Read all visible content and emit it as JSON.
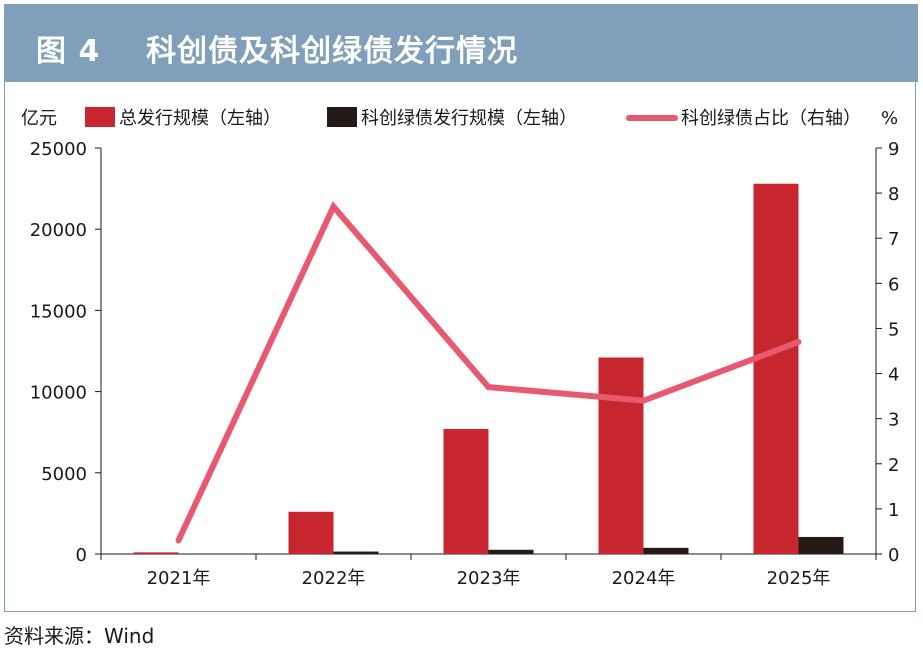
{
  "header": {
    "figure_label": "图 4",
    "title": "科创债及科创绿债发行情况"
  },
  "source": "资料来源：Wind",
  "colors": {
    "header_bg": "#7f9fba",
    "total_bar": "#c8262e",
    "green_bar": "#231a15",
    "ratio_line": "#e8596f"
  },
  "chart_data": {
    "type": "bar",
    "categories": [
      "2021年",
      "2022年",
      "2023年",
      "2024年",
      "2025年"
    ],
    "left_unit": "亿元",
    "right_unit": "%",
    "left_ylim": [
      0,
      25000
    ],
    "left_ticks": [
      "0",
      "5000",
      "10000",
      "15000",
      "20000",
      "25000"
    ],
    "right_ylim": [
      0,
      9
    ],
    "right_ticks": [
      "0",
      "1",
      "2",
      "3",
      "4",
      "5",
      "6",
      "7",
      "8",
      "9"
    ],
    "legend_position": "top",
    "series": [
      {
        "name": "总发行规模（左轴）",
        "kind": "bar",
        "axis": "left",
        "values": [
          100,
          2600,
          7700,
          12100,
          22800
        ]
      },
      {
        "name": "科创绿债发行规模（左轴）",
        "kind": "bar",
        "axis": "left",
        "values": [
          0,
          150,
          260,
          380,
          1050
        ]
      },
      {
        "name": "科创绿债占比（右轴）",
        "kind": "line",
        "axis": "right",
        "values": [
          0.3,
          7.7,
          3.7,
          3.4,
          4.7
        ]
      }
    ]
  }
}
